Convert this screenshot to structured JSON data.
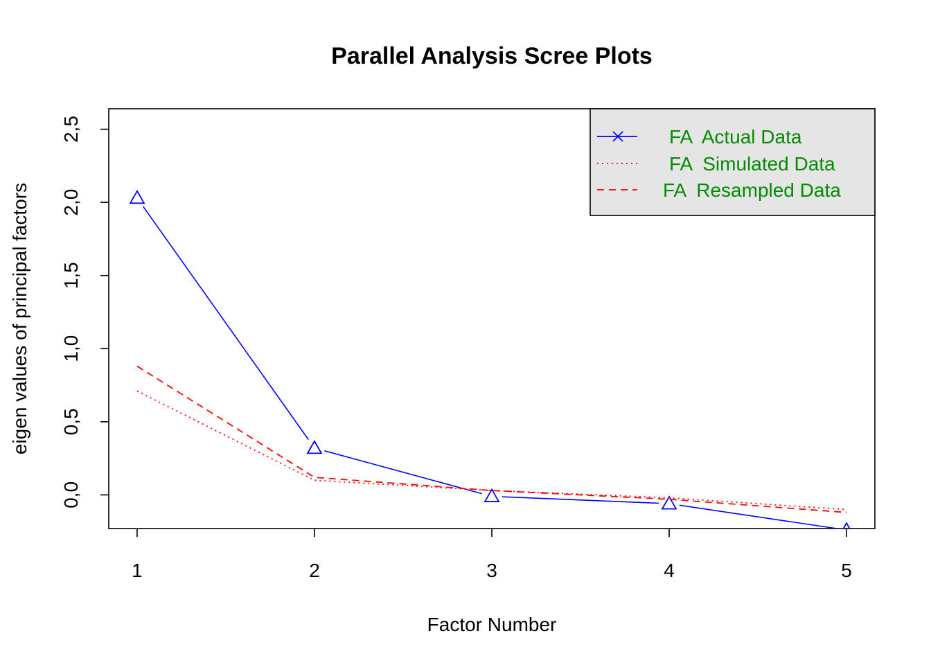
{
  "chart_data": {
    "type": "line",
    "title": "Parallel Analysis Scree Plots",
    "xlabel": "Factor Number",
    "ylabel": "eigen values of principal factors",
    "x": [
      1,
      2,
      3,
      4,
      5
    ],
    "xlim": [
      0.84,
      5.16
    ],
    "ylim": [
      -0.23,
      2.64
    ],
    "xticks": [
      1,
      2,
      3,
      4,
      5
    ],
    "yticks": [
      0.0,
      0.5,
      1.0,
      1.5,
      2.0,
      2.5
    ],
    "ytick_labels": [
      "0,0",
      "0,5",
      "1,0",
      "1,5",
      "2,0",
      "2,5"
    ],
    "grid": false,
    "legend_position": "top-right",
    "colors": {
      "actual": "#0000ff",
      "simulated": "#ff0000",
      "resampled": "#ff0000",
      "legend_text": "#008b00",
      "legend_bg": "#e5e5e5"
    },
    "series": [
      {
        "name": "FA  Actual Data",
        "style": "solid",
        "marker": "triangle",
        "values": [
          2.03,
          0.32,
          -0.01,
          -0.06,
          -0.24
        ]
      },
      {
        "name": "FA  Simulated Data",
        "style": "dotted",
        "marker": "none",
        "values": [
          0.71,
          0.1,
          0.03,
          -0.02,
          -0.1
        ]
      },
      {
        "name": "FA  Resampled Data",
        "style": "dashed",
        "marker": "none",
        "values": [
          0.88,
          0.12,
          0.03,
          -0.03,
          -0.12
        ]
      }
    ]
  }
}
